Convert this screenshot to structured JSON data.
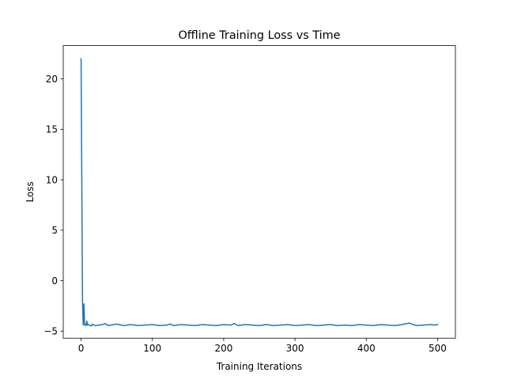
{
  "chart_data": {
    "type": "line",
    "title": "Offline Training Loss vs Time",
    "xlabel": "Training Iterations",
    "ylabel": "Loss",
    "xlim": [
      -25,
      525
    ],
    "ylim": [
      -5.7,
      23.3
    ],
    "xticks": [
      0,
      100,
      200,
      300,
      400,
      500
    ],
    "yticks": [
      -5,
      0,
      5,
      10,
      15,
      20
    ],
    "grid": false,
    "legend": "none",
    "series": [
      {
        "color": "#1f77b4",
        "x": [
          0,
          1,
          2,
          3,
          4,
          5,
          6,
          7,
          8,
          9,
          10,
          12,
          14,
          16,
          18,
          20,
          25,
          30,
          34,
          38,
          42,
          50,
          60,
          70,
          80,
          90,
          100,
          110,
          120,
          125,
          130,
          140,
          150,
          160,
          170,
          180,
          190,
          200,
          210,
          215,
          220,
          230,
          240,
          250,
          260,
          270,
          280,
          290,
          300,
          310,
          320,
          330,
          340,
          350,
          360,
          370,
          380,
          390,
          400,
          410,
          420,
          430,
          440,
          450,
          460,
          470,
          480,
          490,
          495,
          500
        ],
        "y": [
          22.0,
          10.0,
          -2.0,
          -4.4,
          -2.3,
          -4.4,
          -4.35,
          -4.45,
          -4.0,
          -4.4,
          -4.35,
          -4.4,
          -4.5,
          -4.3,
          -4.4,
          -4.45,
          -4.4,
          -4.35,
          -4.25,
          -4.45,
          -4.4,
          -4.3,
          -4.45,
          -4.35,
          -4.45,
          -4.4,
          -4.35,
          -4.45,
          -4.4,
          -4.3,
          -4.45,
          -4.35,
          -4.4,
          -4.45,
          -4.35,
          -4.4,
          -4.45,
          -4.35,
          -4.4,
          -4.25,
          -4.45,
          -4.35,
          -4.4,
          -4.45,
          -4.35,
          -4.45,
          -4.4,
          -4.35,
          -4.45,
          -4.4,
          -4.35,
          -4.45,
          -4.4,
          -4.35,
          -4.45,
          -4.4,
          -4.45,
          -4.35,
          -4.4,
          -4.45,
          -4.35,
          -4.4,
          -4.45,
          -4.35,
          -4.2,
          -4.45,
          -4.4,
          -4.35,
          -4.4,
          -4.35
        ]
      }
    ]
  }
}
